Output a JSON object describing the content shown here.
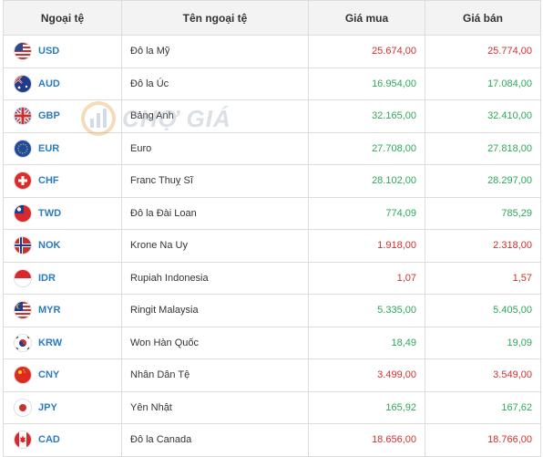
{
  "header": {
    "col_code": "Ngoại tệ",
    "col_name": "Tên ngoại tệ",
    "col_buy": "Giá mua",
    "col_sell": "Giá bán"
  },
  "watermark": {
    "text": "CHỢ GIÁ"
  },
  "colors": {
    "up": "#2ca85a",
    "down": "#d0302f",
    "code": "#2b7bc0"
  },
  "rates": [
    {
      "code": "USD",
      "name": "Đô la Mỹ",
      "buy": "25.674,00",
      "sell": "25.774,00",
      "trend": "down",
      "flag": "us-flag-icon"
    },
    {
      "code": "AUD",
      "name": "Đô la Úc",
      "buy": "16.954,00",
      "sell": "17.084,00",
      "trend": "up",
      "flag": "au-flag-icon"
    },
    {
      "code": "GBP",
      "name": "Bảng Anh",
      "buy": "32.165,00",
      "sell": "32.410,00",
      "trend": "up",
      "flag": "gb-flag-icon"
    },
    {
      "code": "EUR",
      "name": "Euro",
      "buy": "27.708,00",
      "sell": "27.818,00",
      "trend": "up",
      "flag": "eu-flag-icon"
    },
    {
      "code": "CHF",
      "name": "Franc Thuỵ Sĩ",
      "buy": "28.102,00",
      "sell": "28.297,00",
      "trend": "up",
      "flag": "ch-flag-icon"
    },
    {
      "code": "TWD",
      "name": "Đô la Đài Loan",
      "buy": "774,09",
      "sell": "785,29",
      "trend": "up",
      "flag": "tw-flag-icon"
    },
    {
      "code": "NOK",
      "name": "Krone Na Uy",
      "buy": "1.918,00",
      "sell": "2.318,00",
      "trend": "down",
      "flag": "no-flag-icon"
    },
    {
      "code": "IDR",
      "name": "Rupiah Indonesia",
      "buy": "1,07",
      "sell": "1,57",
      "trend": "down",
      "flag": "id-flag-icon"
    },
    {
      "code": "MYR",
      "name": "Ringit Malaysia",
      "buy": "5.335,00",
      "sell": "5.405,00",
      "trend": "up",
      "flag": "my-flag-icon"
    },
    {
      "code": "KRW",
      "name": "Won Hàn Quốc",
      "buy": "18,49",
      "sell": "19,09",
      "trend": "up",
      "flag": "kr-flag-icon"
    },
    {
      "code": "CNY",
      "name": "Nhân Dân Tệ",
      "buy": "3.499,00",
      "sell": "3.549,00",
      "trend": "down",
      "flag": "cn-flag-icon"
    },
    {
      "code": "JPY",
      "name": "Yên Nhật",
      "buy": "165,92",
      "sell": "167,62",
      "trend": "up",
      "flag": "jp-flag-icon"
    },
    {
      "code": "CAD",
      "name": "Đô la Canada",
      "buy": "18.656,00",
      "sell": "18.766,00",
      "trend": "down",
      "flag": "ca-flag-icon"
    }
  ]
}
